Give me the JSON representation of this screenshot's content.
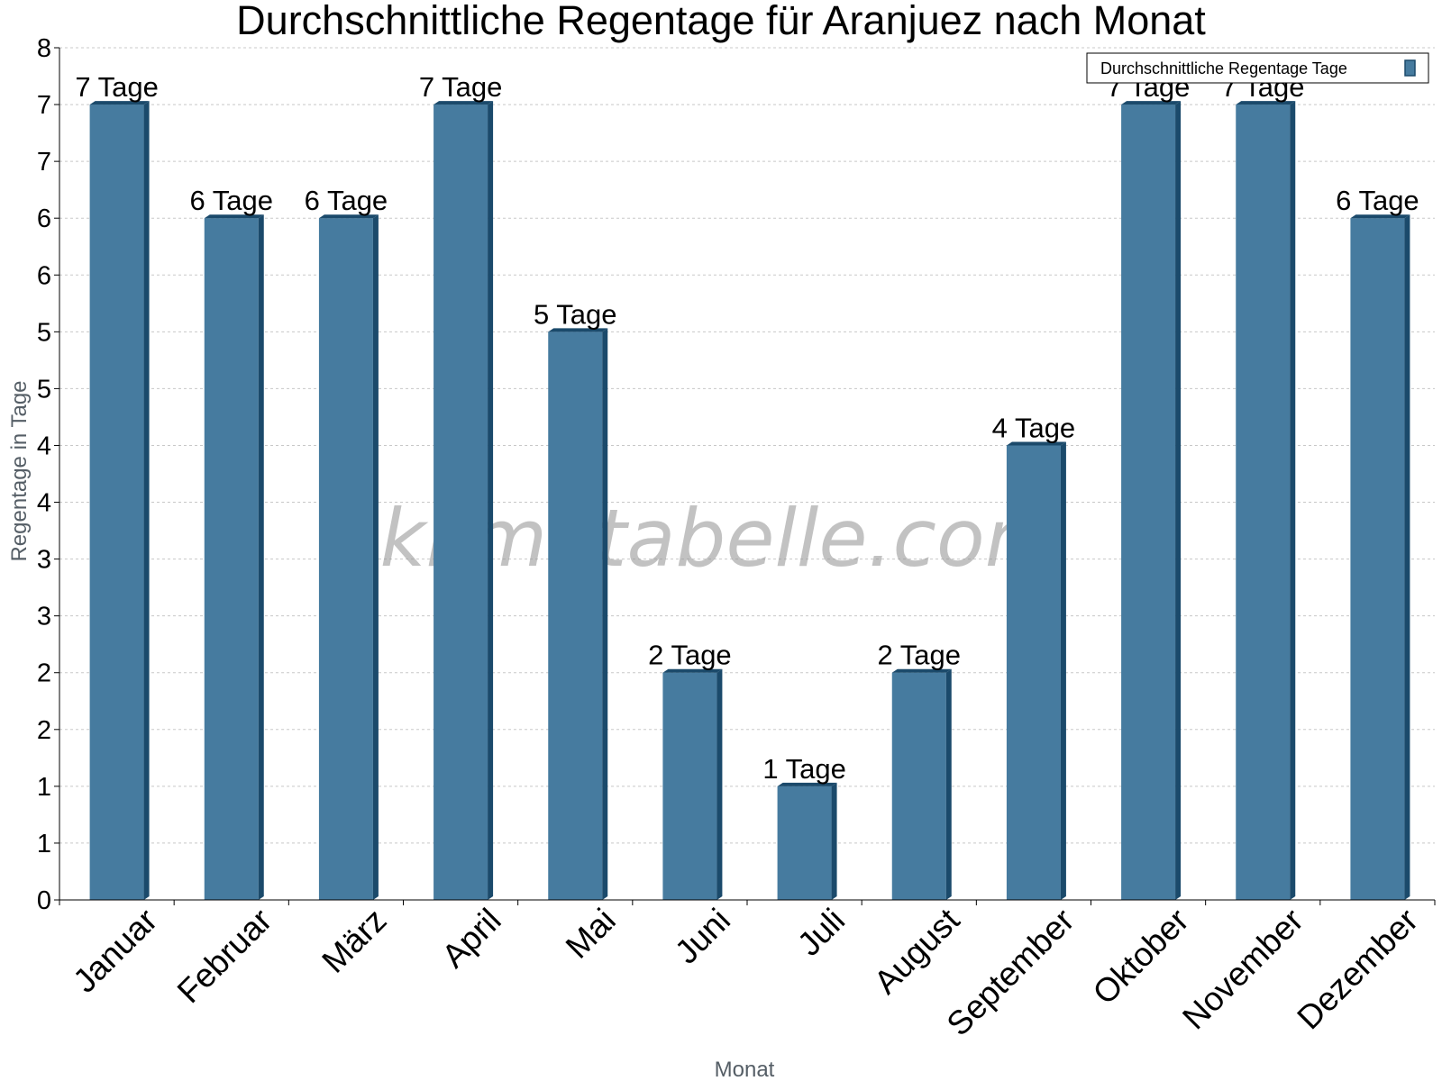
{
  "chart_data": {
    "type": "bar",
    "title": "Durchschnittliche Regentage für Aranjuez nach Monat",
    "xlabel": "Monat",
    "ylabel": "Regentage in Tage",
    "categories": [
      "Januar",
      "Februar",
      "März",
      "April",
      "Mai",
      "Juni",
      "Juli",
      "August",
      "September",
      "Oktober",
      "November",
      "Dezember"
    ],
    "series": [
      {
        "name": "Durchschnittliche Regentage Tage",
        "values": [
          7,
          6,
          6,
          7,
          5,
          2,
          1,
          2,
          4,
          7,
          7,
          6
        ],
        "labels": [
          "7 Tage",
          "6 Tage",
          "6 Tage",
          "7 Tage",
          "5 Tage",
          "2 Tage",
          "1 Tage",
          "2 Tage",
          "4 Tage",
          "7 Tage",
          "7 Tage",
          "6 Tage"
        ]
      }
    ],
    "ylim": [
      0,
      7.5
    ],
    "yticks": [
      0,
      0.5,
      1,
      1.5,
      2,
      2.5,
      3,
      3.5,
      4,
      4.5,
      5,
      5.5,
      6,
      6.5,
      7,
      7.5
    ],
    "ytick_labels": [
      "0",
      "1",
      "1",
      "2",
      "2",
      "3",
      "3",
      "4",
      "4",
      "5",
      "5",
      "6",
      "6",
      "7",
      "7",
      "8"
    ],
    "grid": true,
    "legend_position": "top-right",
    "colors": {
      "bar": "#467b9f",
      "bar_side": "#1b4a6b",
      "bar_top": "#1b4a6b",
      "grid": "#c8c8c8"
    },
    "watermark": "klimatabelle.com"
  }
}
